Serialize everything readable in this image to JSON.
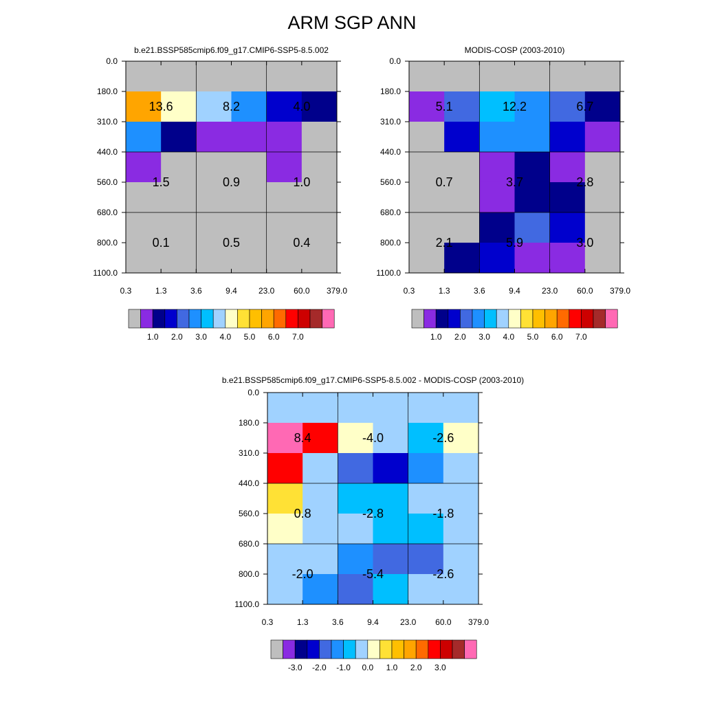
{
  "title": "ARM SGP ANN",
  "chart_data": [
    {
      "type": "heatmap",
      "title": "b.e21.BSSP585cmip6.f09_g17.CMIP6-SSP5-8.5.002",
      "x_ticks": [
        "0.3",
        "1.3",
        "3.6",
        "9.4",
        "23.0",
        "60.0",
        "379.0"
      ],
      "y_ticks": [
        "0.0",
        "180.0",
        "310.0",
        "440.0",
        "560.0",
        "680.0",
        "800.0",
        "1100.0"
      ],
      "grid_cols": 6,
      "grid_rows": 7,
      "cell_colors": [
        [
          "#bebebe",
          "#bebebe",
          "#bebebe",
          "#bebebe",
          "#bebebe",
          "#bebebe"
        ],
        [
          "#ffa500",
          "#ffffc8",
          "#a0d2ff",
          "#1e90ff",
          "#0000cd",
          "#00008b"
        ],
        [
          "#1e90ff",
          "#00008b",
          "#8a2be2",
          "#8a2be2",
          "#8a2be2",
          "#bebebe"
        ],
        [
          "#8a2be2",
          "#bebebe",
          "#bebebe",
          "#bebebe",
          "#8a2be2",
          "#bebebe"
        ],
        [
          "#bebebe",
          "#bebebe",
          "#bebebe",
          "#bebebe",
          "#bebebe",
          "#bebebe"
        ],
        [
          "#bebebe",
          "#bebebe",
          "#bebebe",
          "#bebebe",
          "#bebebe",
          "#bebebe"
        ],
        [
          "#bebebe",
          "#bebebe",
          "#bebebe",
          "#bebebe",
          "#bebebe",
          "#bebebe"
        ]
      ],
      "section_values": [
        [
          "13.6",
          "8.2",
          "4.0"
        ],
        [
          "1.5",
          "0.9",
          "1.0"
        ],
        [
          "0.1",
          "0.5",
          "0.4"
        ]
      ],
      "colorbar": {
        "colors": [
          "#bebebe",
          "#8a2be2",
          "#00008b",
          "#0000cd",
          "#4169e1",
          "#1e90ff",
          "#00bfff",
          "#a0d2ff",
          "#ffffc8",
          "#ffe135",
          "#ffbf00",
          "#ffa500",
          "#ff6a00",
          "#ff0000",
          "#cd0000",
          "#a52a2a",
          "#ff69b4"
        ],
        "labels": [
          "1.0",
          "2.0",
          "3.0",
          "4.0",
          "5.0",
          "6.0",
          "7.0"
        ]
      }
    },
    {
      "type": "heatmap",
      "title": "MODIS-COSP (2003-2010)",
      "x_ticks": [
        "0.3",
        "1.3",
        "3.6",
        "9.4",
        "23.0",
        "60.0",
        "379.0"
      ],
      "y_ticks": [
        "0.0",
        "180.0",
        "310.0",
        "440.0",
        "560.0",
        "680.0",
        "800.0",
        "1100.0"
      ],
      "grid_cols": 6,
      "grid_rows": 7,
      "cell_colors": [
        [
          "#bebebe",
          "#bebebe",
          "#bebebe",
          "#bebebe",
          "#bebebe",
          "#bebebe"
        ],
        [
          "#8a2be2",
          "#4169e1",
          "#00bfff",
          "#1e90ff",
          "#4169e1",
          "#00008b"
        ],
        [
          "#bebebe",
          "#0000cd",
          "#1e90ff",
          "#1e90ff",
          "#0000cd",
          "#8a2be2"
        ],
        [
          "#bebebe",
          "#bebebe",
          "#8a2be2",
          "#00008b",
          "#8a2be2",
          "#bebebe"
        ],
        [
          "#bebebe",
          "#bebebe",
          "#8a2be2",
          "#00008b",
          "#00008b",
          "#bebebe"
        ],
        [
          "#bebebe",
          "#bebebe",
          "#00008b",
          "#4169e1",
          "#0000cd",
          "#bebebe"
        ],
        [
          "#bebebe",
          "#00008b",
          "#0000cd",
          "#8a2be2",
          "#8a2be2",
          "#bebebe"
        ]
      ],
      "section_values": [
        [
          "5.1",
          "12.2",
          "6.7"
        ],
        [
          "0.7",
          "3.7",
          "2.8"
        ],
        [
          "2.1",
          "5.9",
          "3.0"
        ]
      ],
      "colorbar": {
        "colors": [
          "#bebebe",
          "#8a2be2",
          "#00008b",
          "#0000cd",
          "#4169e1",
          "#1e90ff",
          "#00bfff",
          "#a0d2ff",
          "#ffffc8",
          "#ffe135",
          "#ffbf00",
          "#ffa500",
          "#ff6a00",
          "#ff0000",
          "#cd0000",
          "#a52a2a",
          "#ff69b4"
        ],
        "labels": [
          "1.0",
          "2.0",
          "3.0",
          "4.0",
          "5.0",
          "6.0",
          "7.0"
        ]
      }
    },
    {
      "type": "heatmap",
      "title": "b.e21.BSSP585cmip6.f09_g17.CMIP6-SSP5-8.5.002 - MODIS-COSP (2003-2010)",
      "x_ticks": [
        "0.3",
        "1.3",
        "3.6",
        "9.4",
        "23.0",
        "60.0",
        "379.0"
      ],
      "y_ticks": [
        "0.0",
        "180.0",
        "310.0",
        "440.0",
        "560.0",
        "680.0",
        "800.0",
        "1100.0"
      ],
      "grid_cols": 6,
      "grid_rows": 7,
      "cell_colors": [
        [
          "#a0d2ff",
          "#a0d2ff",
          "#a0d2ff",
          "#a0d2ff",
          "#a0d2ff",
          "#a0d2ff"
        ],
        [
          "#ff69b4",
          "#ff0000",
          "#ffffc8",
          "#a0d2ff",
          "#00bfff",
          "#ffffc8"
        ],
        [
          "#ff0000",
          "#a0d2ff",
          "#4169e1",
          "#0000cd",
          "#1e90ff",
          "#a0d2ff"
        ],
        [
          "#ffe135",
          "#a0d2ff",
          "#00bfff",
          "#00bfff",
          "#a0d2ff",
          "#a0d2ff"
        ],
        [
          "#ffffc8",
          "#a0d2ff",
          "#a0d2ff",
          "#00bfff",
          "#00bfff",
          "#a0d2ff"
        ],
        [
          "#a0d2ff",
          "#a0d2ff",
          "#1e90ff",
          "#4169e1",
          "#4169e1",
          "#a0d2ff"
        ],
        [
          "#a0d2ff",
          "#1e90ff",
          "#4169e1",
          "#00bfff",
          "#a0d2ff",
          "#a0d2ff"
        ]
      ],
      "section_values": [
        [
          "8.4",
          "-4.0",
          "-2.6"
        ],
        [
          "0.8",
          "-2.8",
          "-1.8"
        ],
        [
          "-2.0",
          "-5.4",
          "-2.6"
        ]
      ],
      "colorbar": {
        "colors": [
          "#bebebe",
          "#8a2be2",
          "#00008b",
          "#0000cd",
          "#4169e1",
          "#1e90ff",
          "#00bfff",
          "#a0d2ff",
          "#ffffc8",
          "#ffe135",
          "#ffbf00",
          "#ffa500",
          "#ff6a00",
          "#ff0000",
          "#cd0000",
          "#a52a2a",
          "#ff69b4"
        ],
        "labels": [
          "-3.0",
          "-2.0",
          "-1.0",
          "0.0",
          "1.0",
          "2.0",
          "3.0"
        ]
      }
    }
  ]
}
